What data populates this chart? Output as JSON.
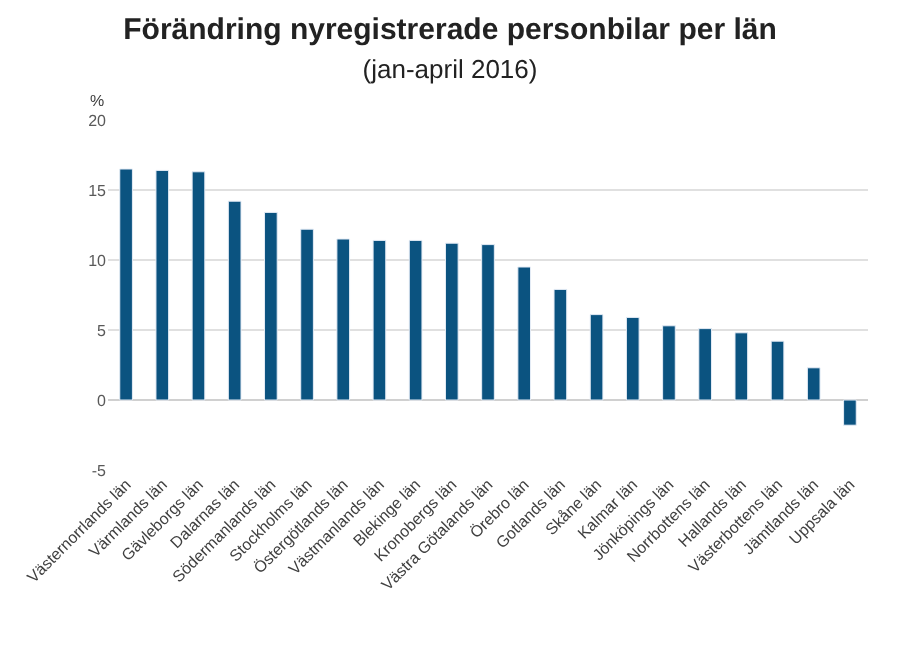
{
  "chart_data": {
    "type": "bar",
    "title": "Förändring nyregistrerade personbilar per län",
    "subtitle": "(jan-april 2016)",
    "ylabel": "%",
    "categories": [
      "Västernorrlands län",
      "Värmlands län",
      "Gävleborgs län",
      "Dalarnas län",
      "Södermanlands län",
      "Stockholms län",
      "Östergötlands län",
      "Västmanlands län",
      "Blekinge län",
      "Kronobergs län",
      "Västra Götalands län",
      "Örebro län",
      "Gotlands län",
      "Skåne län",
      "Kalmar län",
      "Jönköpings län",
      "Norrbottens län",
      "Hallands län",
      "Västerbottens län",
      "Jämtlands län",
      "Uppsala län"
    ],
    "values": [
      16.5,
      16.4,
      16.3,
      14.2,
      13.4,
      12.2,
      11.5,
      11.4,
      11.4,
      11.2,
      11.1,
      9.5,
      7.9,
      6.1,
      5.9,
      5.3,
      5.1,
      4.8,
      4.2,
      2.3,
      -1.8
    ],
    "color": "#0b5380",
    "ylim": [
      -5,
      20
    ],
    "yticks": [
      -5,
      0,
      5,
      10,
      15,
      20
    ],
    "grid": "y"
  }
}
